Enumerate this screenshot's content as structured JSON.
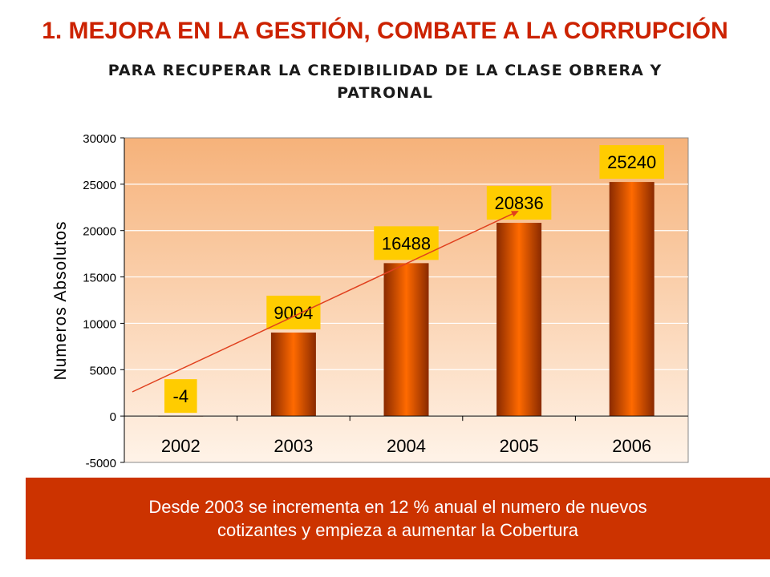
{
  "header": {
    "title": "1. MEJORA EN LA GESTIÓN, COMBATE A LA CORRUPCIÓN",
    "subtitle_line1": "PARA RECUPERAR LA CREDIBILIDAD DE LA CLASE OBRERA Y",
    "subtitle_line2": "PATRONAL"
  },
  "chart_data": {
    "type": "bar",
    "categories": [
      "2002",
      "2003",
      "2004",
      "2005",
      "2006"
    ],
    "values": [
      -4,
      9004,
      16488,
      20836,
      25240
    ],
    "data_labels": [
      "-4",
      "9004",
      "16488",
      "20836",
      "25240"
    ],
    "ylabel": "Numeros Absolutos",
    "ylim": [
      -5000,
      30000
    ],
    "yticks": [
      30000,
      25000,
      20000,
      15000,
      10000,
      5000,
      0,
      -5000
    ],
    "ytick_labels": [
      "30000",
      "25000",
      "20000",
      "15000",
      "10000",
      "5000",
      "0",
      "-5000"
    ],
    "grid": true,
    "trend_arrow": true,
    "colors": {
      "bar_edge": "#8a2a00",
      "bar_center": "#ff6a00",
      "label_bg": "#ffcc00",
      "plot_bg_top": "#f6b27a",
      "plot_bg_bottom": "#fff3e8",
      "arrow": "#e0401e"
    }
  },
  "note": {
    "line1": "Desde 2003  se incrementa  en 12 % anual el numero de nuevos",
    "line2": "cotizantes y empieza a aumentar la Cobertura"
  },
  "colors": {
    "title": "#cc2200",
    "note_bg": "#cc3300"
  }
}
